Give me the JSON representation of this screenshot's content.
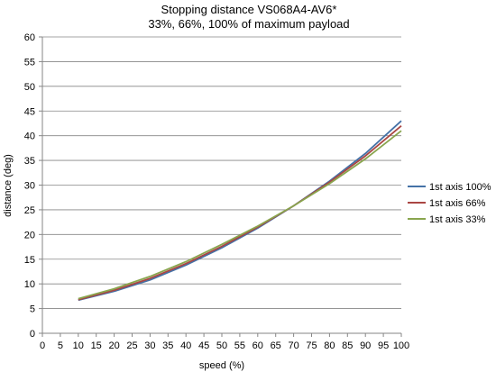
{
  "chart_data": {
    "type": "line",
    "title": "Stopping distance VS068A4-AV6*",
    "subtitle": "33%, 66%, 100% of maximum payload",
    "xlabel": "speed (%)",
    "ylabel": "distance (deg)",
    "xlim": [
      0,
      100
    ],
    "ylim": [
      0,
      60
    ],
    "x_ticks": [
      0,
      5,
      10,
      15,
      20,
      25,
      30,
      35,
      40,
      45,
      50,
      55,
      60,
      65,
      70,
      75,
      80,
      85,
      90,
      95,
      100
    ],
    "y_ticks": [
      0,
      5,
      10,
      15,
      20,
      25,
      30,
      35,
      40,
      45,
      50,
      55,
      60
    ],
    "grid": {
      "horizontal": true,
      "vertical": false
    },
    "legend_position": "right",
    "x": [
      10,
      20,
      30,
      40,
      50,
      60,
      70,
      80,
      90,
      100
    ],
    "series": [
      {
        "name": "1st axis 100%",
        "color": "#4572A7",
        "values": [
          6.7,
          8.5,
          10.8,
          13.8,
          17.3,
          21.3,
          25.8,
          30.8,
          36.4,
          43.0
        ]
      },
      {
        "name": "1st axis 66%",
        "color": "#AA4643",
        "values": [
          6.8,
          8.7,
          11.1,
          14.1,
          17.6,
          21.5,
          25.8,
          30.6,
          35.9,
          42.0
        ]
      },
      {
        "name": "1st axis 33%",
        "color": "#89A54E",
        "values": [
          7.0,
          9.0,
          11.5,
          14.5,
          18.0,
          21.7,
          25.8,
          30.3,
          35.3,
          41.0
        ]
      }
    ]
  }
}
